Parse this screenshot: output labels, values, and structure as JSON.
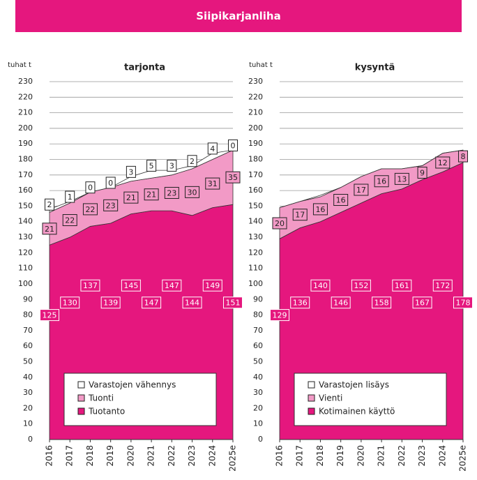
{
  "header": {
    "title": "Siipikarjanliha"
  },
  "chart_data": [
    {
      "type": "area",
      "subtitle": "tarjonta",
      "y_label": "tuhat t",
      "categories": [
        "2016",
        "2017",
        "2018",
        "2019",
        "2020",
        "2021",
        "2022",
        "2023",
        "2024",
        "2025e"
      ],
      "ylim": [
        0,
        230
      ],
      "yticks": [
        0,
        10,
        20,
        30,
        40,
        50,
        60,
        70,
        80,
        90,
        100,
        110,
        120,
        130,
        140,
        150,
        160,
        170,
        180,
        190,
        200,
        210,
        220,
        230
      ],
      "grid": true,
      "stacked": true,
      "series": [
        {
          "name": "Tuotanto",
          "color": "#e5177e",
          "values": [
            125,
            130,
            137,
            139,
            145,
            147,
            147,
            144,
            149,
            151
          ]
        },
        {
          "name": "Tuonti",
          "color": "#f29ac6",
          "values": [
            21,
            22,
            22,
            23,
            21,
            21,
            23,
            30,
            31,
            35
          ]
        },
        {
          "name": "Varastojen vähennys",
          "color": "#ffffff",
          "values": [
            2,
            1,
            0,
            0,
            3,
            5,
            3,
            2,
            4,
            0
          ]
        }
      ]
    },
    {
      "type": "area",
      "subtitle": "kysyntä",
      "y_label": "tuhat t",
      "categories": [
        "2016",
        "2017",
        "2018",
        "2019",
        "2020",
        "2021",
        "2022",
        "2023",
        "2024",
        "2025e"
      ],
      "ylim": [
        0,
        230
      ],
      "yticks": [
        0,
        10,
        20,
        30,
        40,
        50,
        60,
        70,
        80,
        90,
        100,
        110,
        120,
        130,
        140,
        150,
        160,
        170,
        180,
        190,
        200,
        210,
        220,
        230
      ],
      "grid": true,
      "stacked": true,
      "series": [
        {
          "name": "Kotimainen käyttö",
          "color": "#e5177e",
          "values": [
            129,
            136,
            140,
            146,
            152,
            158,
            161,
            167,
            172,
            178
          ]
        },
        {
          "name": "Vienti",
          "color": "#f29ac6",
          "values": [
            20,
            17,
            16,
            16,
            17,
            16,
            13,
            9,
            12,
            8
          ]
        },
        {
          "name": "Varastojen lisäys",
          "color": "#ffffff",
          "values": [
            0,
            0,
            1,
            0,
            0,
            0,
            0,
            0,
            0,
            0
          ],
          "data_labels": false
        }
      ]
    }
  ]
}
